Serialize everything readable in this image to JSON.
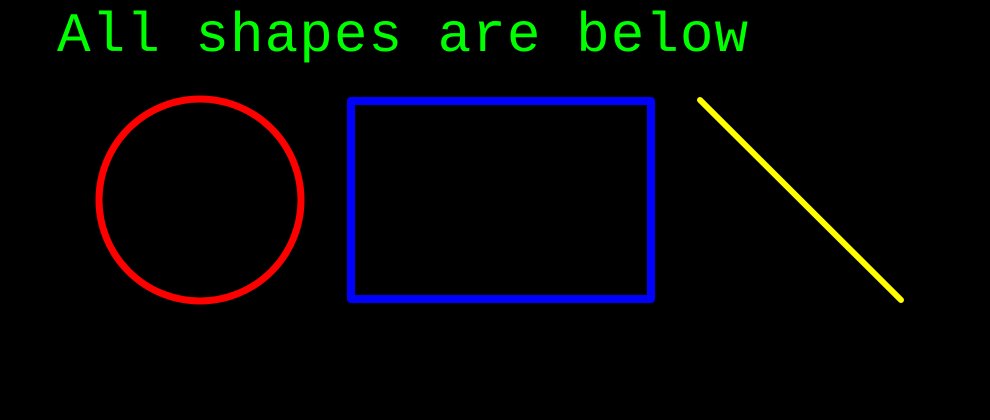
{
  "heading": {
    "text": "All shapes are below"
  },
  "colors": {
    "background": "#000000",
    "heading": "#00ff00",
    "circle": "#ff0000",
    "rectangle": "#0000ff",
    "line": "#ffff00"
  },
  "shapes": [
    {
      "kind": "circle",
      "color_key": "circle"
    },
    {
      "kind": "rectangle",
      "color_key": "rectangle"
    },
    {
      "kind": "line",
      "color_key": "line"
    }
  ]
}
